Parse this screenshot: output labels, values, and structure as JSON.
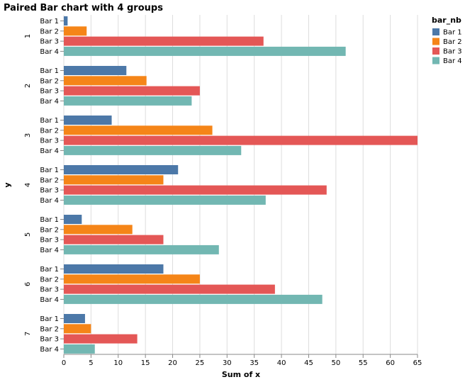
{
  "chart_data": {
    "type": "bar",
    "orientation": "horizontal",
    "title": "Paired Bar chart with 4 groups",
    "xlabel": "Sum of x",
    "ylabel": "y",
    "xlim": [
      0,
      65
    ],
    "x_ticks": [
      0,
      5,
      10,
      15,
      20,
      25,
      30,
      35,
      40,
      45,
      50,
      55,
      60,
      65
    ],
    "grid": true,
    "groups": [
      "1",
      "2",
      "3",
      "4",
      "5",
      "6",
      "7"
    ],
    "bar_labels": [
      "Bar 1",
      "Bar 2",
      "Bar 3",
      "Bar 4"
    ],
    "series": [
      {
        "name": "Bar 1",
        "color": "#4c78a8",
        "values": [
          0.7,
          11.5,
          8.8,
          21.0,
          3.3,
          18.3,
          3.9
        ]
      },
      {
        "name": "Bar 2",
        "color": "#f58518",
        "values": [
          4.2,
          15.2,
          27.3,
          18.3,
          12.6,
          25.0,
          5.0
        ]
      },
      {
        "name": "Bar 3",
        "color": "#e45756",
        "values": [
          36.7,
          25.0,
          65.0,
          48.3,
          18.3,
          38.8,
          13.5
        ]
      },
      {
        "name": "Bar 4",
        "color": "#72b7b2",
        "values": [
          51.8,
          23.5,
          32.6,
          37.1,
          28.5,
          47.5,
          5.7
        ]
      }
    ],
    "legend": {
      "title": "bar_nb",
      "position": "top-right"
    }
  }
}
